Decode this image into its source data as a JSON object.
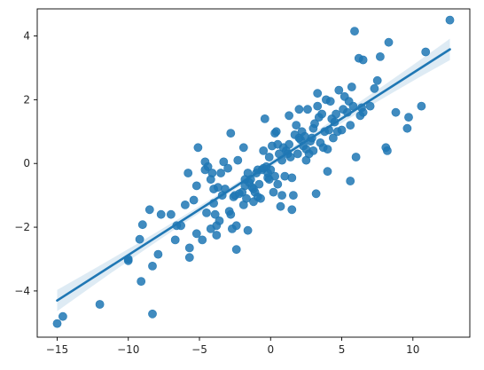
{
  "chart_data": {
    "type": "scatter",
    "title": "",
    "xlabel": "",
    "ylabel": "",
    "xlim": [
      -16.4,
      14.0
    ],
    "ylim": [
      -5.45,
      4.85
    ],
    "xticks": [
      -15,
      -10,
      -5,
      0,
      5,
      10
    ],
    "yticks": [
      -4,
      -2,
      0,
      2,
      4
    ],
    "xtick_labels": [
      "−15",
      "−10",
      "−5",
      "0",
      "5",
      "10"
    ],
    "ytick_labels": [
      "−4",
      "−2",
      "0",
      "2",
      "4"
    ],
    "grid": false,
    "legend": "none",
    "colors": {
      "points": "#1f77b4",
      "line": "#1f77b4",
      "band": "#1f77b4",
      "axis": "#000000"
    },
    "series": [
      {
        "kind": "points",
        "points": [
          [
            -15.0,
            -5.02
          ],
          [
            -14.6,
            -4.8
          ],
          [
            -12.0,
            -4.42
          ],
          [
            -8.3,
            -4.72
          ],
          [
            -9.1,
            -3.7
          ],
          [
            -8.3,
            -3.22
          ],
          [
            -10.0,
            -3.05
          ],
          [
            -10.0,
            -3.0
          ],
          [
            -7.9,
            -2.85
          ],
          [
            -9.2,
            -2.38
          ],
          [
            -9.0,
            -1.92
          ],
          [
            -8.5,
            -1.45
          ],
          [
            -7.7,
            -1.6
          ],
          [
            -7.0,
            -1.6
          ],
          [
            -6.7,
            -2.4
          ],
          [
            -6.6,
            -1.95
          ],
          [
            -6.3,
            -1.95
          ],
          [
            -6.0,
            -1.3
          ],
          [
            -5.7,
            -2.95
          ],
          [
            -5.7,
            -2.65
          ],
          [
            -5.8,
            -0.3
          ],
          [
            -5.4,
            -1.15
          ],
          [
            -5.2,
            -0.7
          ],
          [
            -5.2,
            -2.2
          ],
          [
            -5.1,
            0.5
          ],
          [
            -4.8,
            -2.4
          ],
          [
            -4.6,
            -0.2
          ],
          [
            -4.6,
            0.05
          ],
          [
            -4.5,
            -1.55
          ],
          [
            -4.4,
            -0.1
          ],
          [
            -4.2,
            -0.5
          ],
          [
            -4.2,
            -2.05
          ],
          [
            -4.1,
            -0.3
          ],
          [
            -4.0,
            -1.25
          ],
          [
            -4.0,
            -0.8
          ],
          [
            -3.9,
            -1.6
          ],
          [
            -3.8,
            -1.95
          ],
          [
            -3.8,
            -2.25
          ],
          [
            -3.7,
            -0.75
          ],
          [
            -3.6,
            -1.8
          ],
          [
            -3.5,
            -0.3
          ],
          [
            -3.4,
            -1.0
          ],
          [
            -3.3,
            0.05
          ],
          [
            -3.2,
            -0.8
          ],
          [
            -3.0,
            -0.15
          ],
          [
            -2.9,
            -1.5
          ],
          [
            -2.8,
            0.95
          ],
          [
            -2.8,
            -1.6
          ],
          [
            -2.7,
            -2.05
          ],
          [
            -2.6,
            -1.05
          ],
          [
            -2.5,
            -1.0
          ],
          [
            -2.4,
            -1.95
          ],
          [
            -2.4,
            -2.7
          ],
          [
            -2.3,
            0.1
          ],
          [
            -2.2,
            -0.95
          ],
          [
            -2.0,
            -0.9
          ],
          [
            -1.9,
            -1.3
          ],
          [
            -1.9,
            0.5
          ],
          [
            -1.8,
            -0.5
          ],
          [
            -1.8,
            -0.7
          ],
          [
            -1.7,
            -1.1
          ],
          [
            -1.6,
            -0.3
          ],
          [
            -1.6,
            -2.1
          ],
          [
            -1.5,
            -0.6
          ],
          [
            -1.4,
            -0.5
          ],
          [
            -1.3,
            -0.75
          ],
          [
            -1.2,
            -0.8
          ],
          [
            -1.2,
            -1.2
          ],
          [
            -1.1,
            -0.9
          ],
          [
            -1.0,
            -0.3
          ],
          [
            -0.9,
            -0.2
          ],
          [
            -0.9,
            -1.05
          ],
          [
            -0.8,
            -0.65
          ],
          [
            -0.7,
            -1.1
          ],
          [
            -0.6,
            -0.2
          ],
          [
            -0.5,
            -0.15
          ],
          [
            -0.5,
            0.4
          ],
          [
            -0.4,
            1.4
          ],
          [
            -0.3,
            -0.1
          ],
          [
            -0.2,
            -0.3
          ],
          [
            -0.2,
            -0.45
          ],
          [
            -0.1,
            -0.5
          ],
          [
            -0.1,
            0.2
          ],
          [
            0.0,
            -0.2
          ],
          [
            0.1,
            0.55
          ],
          [
            0.2,
            -0.9
          ],
          [
            0.3,
            -0.4
          ],
          [
            0.3,
            0.95
          ],
          [
            0.4,
            1.0
          ],
          [
            0.5,
            -0.65
          ],
          [
            0.5,
            0.6
          ],
          [
            0.6,
            0.3
          ],
          [
            0.7,
            -1.35
          ],
          [
            0.8,
            0.1
          ],
          [
            0.8,
            -1.0
          ],
          [
            0.9,
            0.5
          ],
          [
            1.0,
            -0.4
          ],
          [
            1.1,
            0.4
          ],
          [
            1.2,
            0.3
          ],
          [
            1.3,
            0.6
          ],
          [
            1.3,
            1.5
          ],
          [
            1.4,
            0.2
          ],
          [
            1.5,
            -0.45
          ],
          [
            1.5,
            -1.45
          ],
          [
            1.6,
            -1.0
          ],
          [
            1.7,
            0.9
          ],
          [
            1.8,
            1.2
          ],
          [
            1.9,
            0.3
          ],
          [
            2.0,
            0.8
          ],
          [
            2.0,
            1.7
          ],
          [
            2.1,
            0.75
          ],
          [
            2.2,
            1.0
          ],
          [
            2.3,
            0.55
          ],
          [
            2.4,
            0.85
          ],
          [
            2.5,
            0.1
          ],
          [
            2.5,
            0.45
          ],
          [
            2.6,
            1.7
          ],
          [
            2.7,
            0.3
          ],
          [
            2.8,
            0.7
          ],
          [
            2.9,
            0.8
          ],
          [
            3.0,
            0.4
          ],
          [
            3.0,
            1.1
          ],
          [
            3.1,
            1.25
          ],
          [
            3.2,
            -0.95
          ],
          [
            3.3,
            2.2
          ],
          [
            3.3,
            1.8
          ],
          [
            3.4,
            1.45
          ],
          [
            3.5,
            0.65
          ],
          [
            3.6,
            1.55
          ],
          [
            3.7,
            0.5
          ],
          [
            3.8,
            1.0
          ],
          [
            3.9,
            2.0
          ],
          [
            4.0,
            -0.25
          ],
          [
            4.0,
            0.45
          ],
          [
            4.1,
            1.05
          ],
          [
            4.2,
            1.95
          ],
          [
            4.3,
            1.4
          ],
          [
            4.4,
            0.8
          ],
          [
            4.5,
            1.3
          ],
          [
            4.6,
            1.55
          ],
          [
            4.7,
            1.0
          ],
          [
            4.8,
            2.3
          ],
          [
            5.0,
            1.05
          ],
          [
            5.1,
            1.7
          ],
          [
            5.2,
            2.1
          ],
          [
            5.4,
            1.6
          ],
          [
            5.5,
            1.95
          ],
          [
            5.6,
            1.2
          ],
          [
            5.6,
            -0.55
          ],
          [
            5.7,
            2.4
          ],
          [
            5.8,
            1.8
          ],
          [
            5.9,
            4.15
          ],
          [
            6.0,
            0.2
          ],
          [
            6.2,
            3.3
          ],
          [
            6.3,
            1.5
          ],
          [
            6.4,
            1.75
          ],
          [
            6.5,
            3.25
          ],
          [
            6.5,
            1.6
          ],
          [
            7.0,
            1.8
          ],
          [
            7.3,
            2.35
          ],
          [
            7.5,
            2.6
          ],
          [
            7.7,
            3.35
          ],
          [
            8.1,
            0.5
          ],
          [
            8.2,
            0.4
          ],
          [
            8.3,
            3.8
          ],
          [
            8.8,
            1.6
          ],
          [
            9.6,
            1.1
          ],
          [
            9.7,
            1.45
          ],
          [
            10.6,
            1.8
          ],
          [
            10.9,
            3.5
          ],
          [
            12.6,
            4.5
          ]
        ]
      },
      {
        "kind": "regression",
        "x": [
          -15.0,
          12.6
        ],
        "y": [
          -4.3,
          3.58
        ],
        "ci_lower": [
          -4.64,
          3.25
        ],
        "ci_upper": [
          -3.96,
          3.91
        ]
      }
    ]
  }
}
